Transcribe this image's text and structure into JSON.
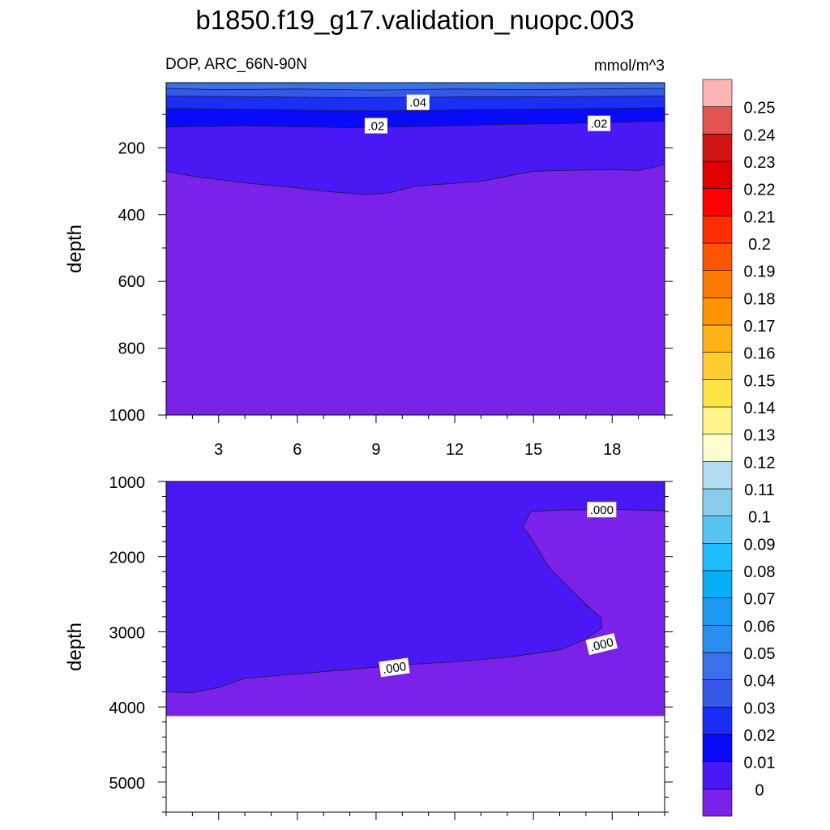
{
  "title": "b1850.f19_g17.validation_nuopc.003",
  "left_subtitle": "DOP, ARC_66N-90N",
  "right_subtitle": "mmol/m^3",
  "chart_data": [
    {
      "type": "contour",
      "panel": "upper",
      "ylabel": "depth",
      "xlabel": "",
      "xlim": [
        1,
        20
      ],
      "ylim": [
        1000,
        0
      ],
      "y_inverted": true,
      "xticks": [
        3,
        6,
        9,
        12,
        15,
        18
      ],
      "xtick_labels": [
        "3",
        "6",
        "9",
        "12",
        "15",
        "18"
      ],
      "yticks": [
        200,
        400,
        600,
        800,
        1000
      ],
      "ytick_labels": [
        "200",
        "400",
        "600",
        "800",
        "1000"
      ],
      "y_top": 5,
      "contour_labels": [
        {
          "text": ".04",
          "x": 10.6,
          "y": 65
        },
        {
          "text": ".02",
          "x": 9.0,
          "y": 135
        },
        {
          "text": ".02",
          "x": 17.5,
          "y": 128
        }
      ],
      "regions": [
        {
          "level_index": 6,
          "boundary": [
            [
              1,
              5
            ],
            [
              6,
              7
            ],
            [
              8,
              10
            ],
            [
              12,
              8
            ],
            [
              14,
              11
            ],
            [
              16,
              6
            ],
            [
              20,
              5
            ]
          ]
        },
        {
          "level_index": 5,
          "boundary": [
            [
              1,
              22
            ],
            [
              3,
              26
            ],
            [
              6,
              24
            ],
            [
              9,
              27
            ],
            [
              12,
              24
            ],
            [
              15,
              26
            ],
            [
              18,
              23
            ],
            [
              20,
              22
            ]
          ]
        },
        {
          "level_index": 4,
          "boundary": [
            [
              1,
              45
            ],
            [
              4,
              47
            ],
            [
              8,
              50
            ],
            [
              12,
              48
            ],
            [
              16,
              47
            ],
            [
              20,
              45
            ]
          ]
        },
        {
          "level_index": 3,
          "boundary": [
            [
              1,
              82
            ],
            [
              5,
              86
            ],
            [
              9,
              90
            ],
            [
              13,
              86
            ],
            [
              17,
              83
            ],
            [
              20,
              80
            ]
          ]
        },
        {
          "level_index": 2,
          "boundary": [
            [
              1,
              138
            ],
            [
              4,
              134
            ],
            [
              8,
              140
            ],
            [
              11,
              136
            ],
            [
              14,
              130
            ],
            [
              17,
              126
            ],
            [
              20,
              120
            ]
          ]
        },
        {
          "level_index": 1,
          "boundary": [
            [
              1,
              270
            ],
            [
              2,
              285
            ],
            [
              4,
              305
            ],
            [
              6,
              320
            ],
            [
              7,
              330
            ],
            [
              8.6,
              340
            ],
            [
              9.5,
              335
            ],
            [
              10.5,
              315
            ],
            [
              13,
              300
            ],
            [
              15,
              270
            ],
            [
              18,
              265
            ],
            [
              19,
              268
            ],
            [
              20,
              250
            ]
          ]
        }
      ],
      "background_level_index": 0
    },
    {
      "type": "contour",
      "panel": "lower",
      "ylabel": "depth",
      "xlabel": "",
      "xlim": [
        1,
        20
      ],
      "ylim": [
        1000,
        5400
      ],
      "y_inverted": true,
      "xticks": [
        3,
        6,
        9,
        12,
        15,
        18
      ],
      "yticks": [
        1000,
        2000,
        3000,
        4000,
        5000
      ],
      "ytick_labels": [
        "1000",
        "2000",
        "3000",
        "4000",
        "5000"
      ],
      "bottom_depth": 4120,
      "contour_labels": [
        {
          "text": ".000",
          "x": 17.6,
          "y": 1380
        },
        {
          "text": ".000",
          "x": 9.7,
          "y": 3480
        },
        {
          "text": ".000",
          "x": 17.6,
          "y": 3170
        }
      ],
      "zero_region": [
        [
          1,
          3800
        ],
        [
          2,
          3810
        ],
        [
          3,
          3740
        ],
        [
          4,
          3620
        ],
        [
          6,
          3560
        ],
        [
          8,
          3500
        ],
        [
          10,
          3440
        ],
        [
          12,
          3400
        ],
        [
          14,
          3340
        ],
        [
          16,
          3240
        ],
        [
          17,
          3100
        ],
        [
          17.6,
          2950
        ],
        [
          17.6,
          2820
        ],
        [
          17.2,
          2700
        ],
        [
          16.6,
          2500
        ],
        [
          15.6,
          2150
        ],
        [
          15,
          1800
        ],
        [
          14.6,
          1600
        ],
        [
          14.9,
          1400
        ],
        [
          16,
          1380
        ],
        [
          17,
          1375
        ],
        [
          18,
          1370
        ],
        [
          19,
          1380
        ],
        [
          20,
          1390
        ],
        [
          20,
          4120
        ],
        [
          1,
          4120
        ]
      ],
      "negative_level_index": 1,
      "zero_level_index": 0
    }
  ],
  "colorbar": {
    "labels": [
      "0",
      "0.01",
      "0.02",
      "0.03",
      "0.04",
      "0.05",
      "0.06",
      "0.07",
      "0.08",
      "0.09",
      "0.1",
      "0.11",
      "0.12",
      "0.13",
      "0.14",
      "0.15",
      "0.16",
      "0.17",
      "0.18",
      "0.19",
      "0.2",
      "0.21",
      "0.22",
      "0.23",
      "0.24",
      "0.25"
    ],
    "colors": [
      "#7a22ea",
      "#4a18f4",
      "#0a0afa",
      "#1a2ef4",
      "#3658e8",
      "#3a70ea",
      "#2a8ef0",
      "#1a9af4",
      "#08aef8",
      "#20beff",
      "#58c4f4",
      "#8acbeb",
      "#b2dcf2",
      "#fefece",
      "#fff58c",
      "#fee544",
      "#fece30",
      "#feb418",
      "#fe9400",
      "#fe7a00",
      "#fe5600",
      "#fe2e00",
      "#fe0000",
      "#e00000",
      "#d01414",
      "#e45252",
      "#fdb4b4"
    ]
  }
}
